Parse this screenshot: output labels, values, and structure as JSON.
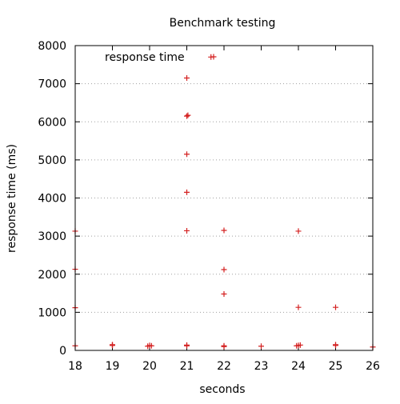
{
  "chart_data": {
    "type": "scatter",
    "title": "Benchmark testing",
    "xlabel": "seconds",
    "ylabel": "response time (ms)",
    "xlim": [
      18,
      26
    ],
    "ylim": [
      0,
      8000
    ],
    "xticks": [
      18,
      19,
      20,
      21,
      22,
      23,
      24,
      25,
      26
    ],
    "yticks": [
      0,
      1000,
      2000,
      3000,
      4000,
      5000,
      6000,
      7000,
      8000
    ],
    "grid": "horizontal",
    "legend": "top-left",
    "series": [
      {
        "name": "response time",
        "color": "#d42020",
        "marker": "plus",
        "points": [
          [
            18.0,
            120
          ],
          [
            18.0,
            1120
          ],
          [
            18.0,
            2130
          ],
          [
            18.0,
            3130
          ],
          [
            19.0,
            130
          ],
          [
            19.0,
            150
          ],
          [
            19.0,
            140
          ],
          [
            19.95,
            110
          ],
          [
            20.0,
            130
          ],
          [
            20.05,
            120
          ],
          [
            21.0,
            120
          ],
          [
            21.0,
            140
          ],
          [
            21.0,
            3140
          ],
          [
            21.0,
            4150
          ],
          [
            21.0,
            5150
          ],
          [
            21.0,
            6150
          ],
          [
            21.03,
            6170
          ],
          [
            21.0,
            7150
          ],
          [
            21.65,
            7700
          ],
          [
            22.0,
            100
          ],
          [
            22.0,
            120
          ],
          [
            22.0,
            1480
          ],
          [
            22.0,
            2120
          ],
          [
            22.0,
            3150
          ],
          [
            23.0,
            110
          ],
          [
            23.95,
            120
          ],
          [
            24.0,
            130
          ],
          [
            24.05,
            140
          ],
          [
            24.0,
            1130
          ],
          [
            24.0,
            3130
          ],
          [
            25.0,
            130
          ],
          [
            25.0,
            150
          ],
          [
            25.0,
            1130
          ],
          [
            26.0,
            90
          ]
        ]
      }
    ]
  }
}
